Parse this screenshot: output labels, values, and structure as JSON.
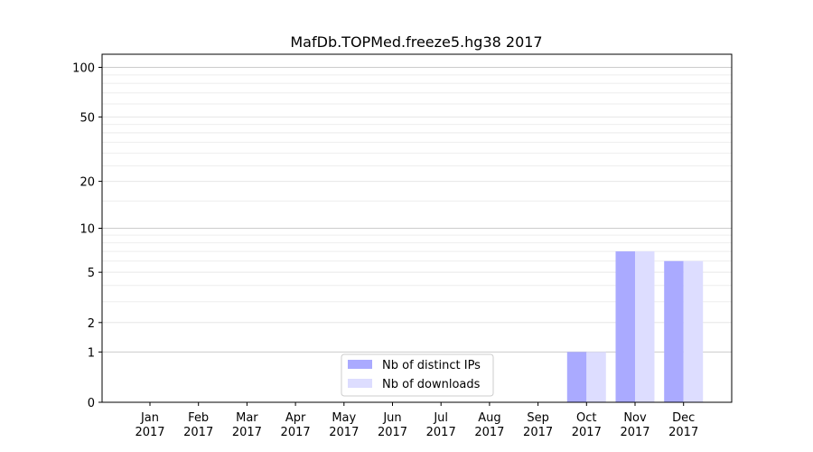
{
  "chart_data": {
    "type": "bar",
    "title": "MafDb.TOPMed.freeze5.hg38 2017",
    "xlabel": "",
    "ylabel": "",
    "categories": [
      [
        "Jan",
        "2017"
      ],
      [
        "Feb",
        "2017"
      ],
      [
        "Mar",
        "2017"
      ],
      [
        "Apr",
        "2017"
      ],
      [
        "May",
        "2017"
      ],
      [
        "Jun",
        "2017"
      ],
      [
        "Jul",
        "2017"
      ],
      [
        "Aug",
        "2017"
      ],
      [
        "Sep",
        "2017"
      ],
      [
        "Oct",
        "2017"
      ],
      [
        "Nov",
        "2017"
      ],
      [
        "Dec",
        "2017"
      ]
    ],
    "series": [
      {
        "name": "Nb of distinct IPs",
        "color": "#aaaaff",
        "values": [
          0,
          0,
          0,
          0,
          0,
          0,
          0,
          0,
          0,
          1,
          7,
          6
        ]
      },
      {
        "name": "Nb of downloads",
        "color": "#ddddff",
        "values": [
          0,
          0,
          0,
          0,
          0,
          0,
          0,
          0,
          0,
          1,
          7,
          6
        ]
      }
    ],
    "yscale": "log(1+y)",
    "ylim": [
      0,
      120
    ],
    "yticks": [
      0,
      1,
      2,
      5,
      10,
      20,
      50,
      100
    ],
    "grid": "horizontal",
    "legend_position": "bottom-center"
  }
}
